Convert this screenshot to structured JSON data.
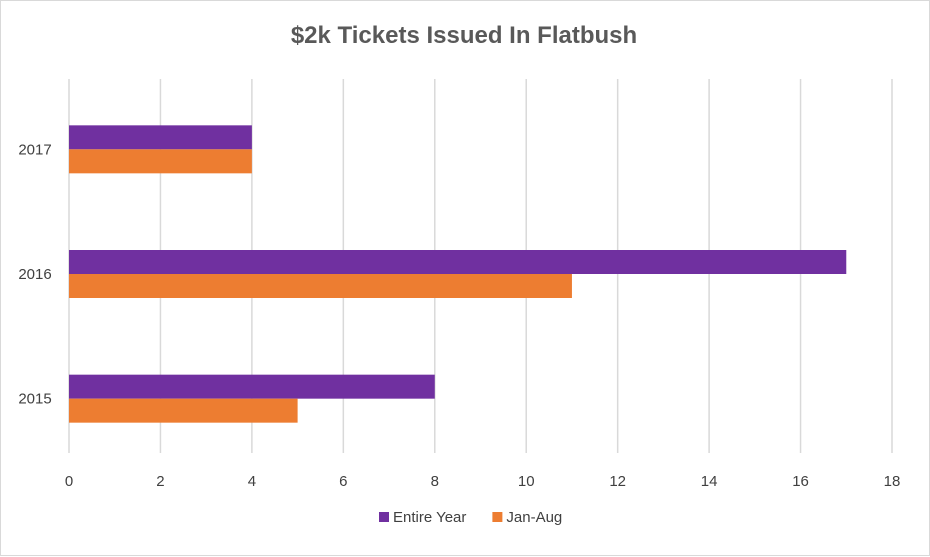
{
  "chart_data": {
    "type": "bar",
    "orientation": "horizontal",
    "title": "$2k Tickets Issued In Flatbush",
    "categories": [
      "2015",
      "2016",
      "2017"
    ],
    "series": [
      {
        "name": "Entire Year",
        "values": [
          8,
          17,
          4
        ],
        "color": "#7030a0"
      },
      {
        "name": "Jan-Aug",
        "values": [
          5,
          11,
          4
        ],
        "color": "#ed7d31"
      }
    ],
    "x_ticks": [
      0,
      2,
      4,
      6,
      8,
      10,
      12,
      14,
      16,
      18
    ],
    "xlim": [
      0,
      18
    ],
    "grid": true,
    "legend_position": "bottom"
  }
}
